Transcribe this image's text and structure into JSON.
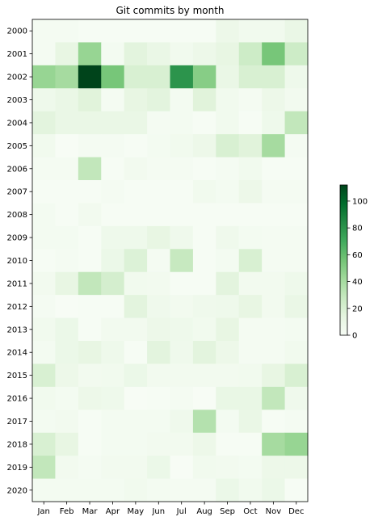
{
  "chart_data": {
    "type": "heatmap",
    "title": "Git commits by month",
    "xlabel": "",
    "ylabel": "",
    "x_categories": [
      "Jan",
      "Feb",
      "Mar",
      "Apr",
      "May",
      "Jun",
      "Jul",
      "Aug",
      "Sep",
      "Oct",
      "Nov",
      "Dec"
    ],
    "y_categories": [
      "2000",
      "2001",
      "2002",
      "2003",
      "2004",
      "2005",
      "2006",
      "2007",
      "2008",
      "2009",
      "2010",
      "2011",
      "2012",
      "2013",
      "2014",
      "2015",
      "2016",
      "2017",
      "2018",
      "2019",
      "2020"
    ],
    "values": [
      [
        2,
        2,
        1,
        1,
        1,
        1,
        1,
        1,
        8,
        5,
        5,
        10
      ],
      [
        2,
        12,
        45,
        3,
        15,
        10,
        5,
        8,
        12,
        25,
        55,
        25
      ],
      [
        45,
        40,
        112,
        55,
        20,
        20,
        80,
        50,
        10,
        20,
        20,
        7
      ],
      [
        7,
        10,
        16,
        2,
        12,
        15,
        3,
        16,
        5,
        2,
        8,
        4
      ],
      [
        15,
        10,
        10,
        10,
        10,
        2,
        3,
        1,
        5,
        1,
        7,
        30
      ],
      [
        5,
        0,
        2,
        2,
        1,
        3,
        5,
        8,
        20,
        16,
        40,
        2
      ],
      [
        2,
        2,
        30,
        1,
        4,
        2,
        2,
        1,
        2,
        5,
        1,
        1
      ],
      [
        1,
        1,
        1,
        2,
        1,
        1,
        1,
        5,
        3,
        8,
        2,
        2
      ],
      [
        3,
        1,
        4,
        1,
        1,
        1,
        1,
        1,
        1,
        1,
        1,
        1
      ],
      [
        3,
        3,
        1,
        7,
        7,
        12,
        6,
        1,
        6,
        3,
        2,
        2
      ],
      [
        1,
        2,
        1,
        9,
        18,
        2,
        28,
        1,
        3,
        20,
        2,
        2
      ],
      [
        4,
        12,
        30,
        22,
        5,
        4,
        1,
        1,
        15,
        4,
        4,
        7
      ],
      [
        2,
        0,
        1,
        1,
        15,
        6,
        4,
        6,
        7,
        12,
        4,
        10
      ],
      [
        5,
        9,
        1,
        4,
        4,
        8,
        7,
        5,
        12,
        2,
        2,
        3
      ],
      [
        3,
        9,
        12,
        7,
        1,
        15,
        6,
        15,
        8,
        2,
        2,
        5
      ],
      [
        20,
        8,
        4,
        5,
        9,
        4,
        4,
        4,
        4,
        5,
        12,
        20
      ],
      [
        5,
        3,
        8,
        7,
        0,
        1,
        2,
        0,
        11,
        11,
        30,
        6
      ],
      [
        3,
        4,
        1,
        3,
        3,
        3,
        6,
        35,
        3,
        10,
        1,
        2
      ],
      [
        20,
        12,
        1,
        3,
        3,
        4,
        4,
        8,
        1,
        1,
        40,
        45
      ],
      [
        30,
        4,
        2,
        4,
        4,
        9,
        0,
        5,
        4,
        3,
        8,
        8
      ],
      [
        3,
        3,
        3,
        3,
        5,
        3,
        2,
        2,
        9,
        5,
        9,
        1
      ]
    ],
    "colorbar": {
      "min": 0,
      "max": 112,
      "ticks": [
        0,
        20,
        40,
        60,
        80,
        100
      ],
      "colormap": "Greens"
    },
    "grid": false
  }
}
